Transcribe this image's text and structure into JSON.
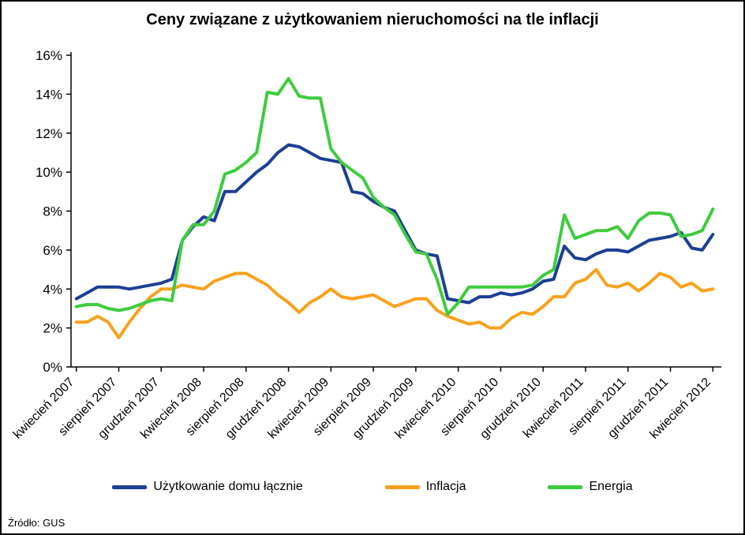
{
  "source": "Źródło: GUS",
  "chart_data": {
    "type": "line",
    "title": "Ceny związane z użytkowaniem nieruchomości na tle inflacji",
    "xlabel": "",
    "ylabel": "",
    "ylim": [
      0,
      16
    ],
    "yticks": [
      "0%",
      "2%",
      "4%",
      "6%",
      "8%",
      "10%",
      "12%",
      "14%",
      "16%"
    ],
    "xticks": [
      "kwiecień 2007",
      "sierpień 2007",
      "grudzień 2007",
      "kwiecień 2008",
      "sierpień 2008",
      "grudzień 2008",
      "kwiecień 2009",
      "sierpień 2009",
      "grudzień 2009",
      "kwiecień 2010",
      "sierpień 2010",
      "grudzień 2010",
      "kwiecień 2011",
      "sierpień 2011",
      "grudzień 2011",
      "kwiecień 2012"
    ],
    "tick_every": 4,
    "x_unit": "month",
    "x_range": [
      "kwiecień 2007",
      "kwiecień 2012"
    ],
    "grid": false,
    "legend_position": "bottom",
    "series": [
      {
        "id": "uzytkowanie-domu-lacznie",
        "name": "Użytkowanie domu łącznie",
        "color": "#1c3f94",
        "values": [
          3.5,
          3.8,
          4.1,
          4.1,
          4.1,
          4.0,
          4.1,
          4.2,
          4.3,
          4.5,
          6.5,
          7.2,
          7.7,
          7.5,
          9.0,
          9.0,
          9.5,
          10.0,
          10.4,
          11.0,
          11.4,
          11.3,
          11.0,
          10.7,
          10.6,
          10.5,
          9.0,
          8.9,
          8.5,
          8.2,
          8.0,
          7.0,
          6.0,
          5.8,
          5.7,
          3.5,
          3.4,
          3.3,
          3.6,
          3.6,
          3.8,
          3.7,
          3.8,
          4.0,
          4.4,
          4.5,
          6.2,
          5.6,
          5.5,
          5.8,
          6.0,
          6.0,
          5.9,
          6.2,
          6.5,
          6.6,
          6.7,
          6.9,
          6.1,
          6.0,
          6.8
        ]
      },
      {
        "id": "inflacja",
        "name": "Inflacja",
        "color": "#f9a11b",
        "values": [
          2.3,
          2.3,
          2.6,
          2.3,
          1.5,
          2.3,
          3.0,
          3.6,
          4.0,
          4.0,
          4.2,
          4.1,
          4.0,
          4.4,
          4.6,
          4.8,
          4.8,
          4.5,
          4.2,
          3.7,
          3.3,
          2.8,
          3.3,
          3.6,
          4.0,
          3.6,
          3.5,
          3.6,
          3.7,
          3.4,
          3.1,
          3.3,
          3.5,
          3.5,
          2.9,
          2.6,
          2.4,
          2.2,
          2.3,
          2.0,
          2.0,
          2.5,
          2.8,
          2.7,
          3.1,
          3.6,
          3.6,
          4.3,
          4.5,
          5.0,
          4.2,
          4.1,
          4.3,
          3.9,
          4.3,
          4.8,
          4.6,
          4.1,
          4.3,
          3.9,
          4.0
        ]
      },
      {
        "id": "energia",
        "name": "Energia",
        "color": "#3ecc3e",
        "values": [
          3.1,
          3.2,
          3.2,
          3.0,
          2.9,
          3.0,
          3.2,
          3.4,
          3.5,
          3.4,
          6.5,
          7.3,
          7.3,
          8.0,
          9.9,
          10.1,
          10.5,
          11.0,
          14.1,
          14.0,
          14.8,
          13.9,
          13.8,
          13.8,
          11.2,
          10.5,
          10.1,
          9.7,
          8.7,
          8.2,
          7.8,
          6.8,
          5.9,
          5.8,
          4.5,
          2.7,
          3.3,
          4.1,
          4.1,
          4.1,
          4.1,
          4.1,
          4.1,
          4.2,
          4.7,
          5.0,
          7.8,
          6.6,
          6.8,
          7.0,
          7.0,
          7.2,
          6.6,
          7.5,
          7.9,
          7.9,
          7.8,
          6.7,
          6.8,
          7.0,
          8.1
        ]
      }
    ]
  }
}
